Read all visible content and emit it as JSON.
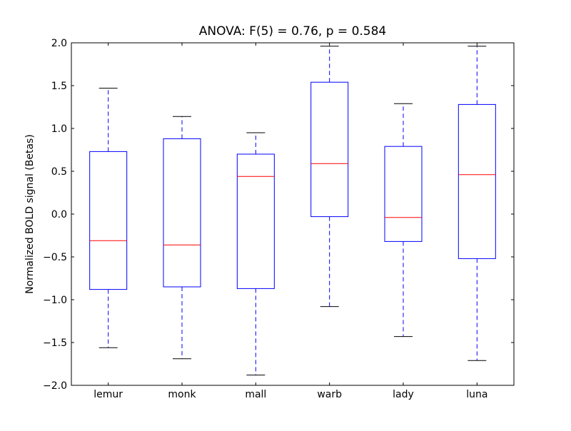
{
  "chart_data": {
    "type": "box",
    "title": "ANOVA: F(5) = 0.76, p = 0.584",
    "xlabel": "",
    "ylabel": "Normalized BOLD signal (Betas)",
    "ylim": [
      -2.0,
      2.0
    ],
    "yticks": [
      "−2.0",
      "−1.5",
      "−1.0",
      "−0.5",
      "0.0",
      "0.5",
      "1.0",
      "1.5",
      "2.0"
    ],
    "ytick_values": [
      -2.0,
      -1.5,
      -1.0,
      -0.5,
      0.0,
      0.5,
      1.0,
      1.5,
      2.0
    ],
    "grid": false,
    "categories": [
      "lemur",
      "monk",
      "mall",
      "warb",
      "lady",
      "luna"
    ],
    "boxes": [
      {
        "whisker_low": -1.56,
        "q1": -0.88,
        "median": -0.31,
        "q3": 0.73,
        "whisker_high": 1.47
      },
      {
        "whisker_low": -1.69,
        "q1": -0.85,
        "median": -0.36,
        "q3": 0.88,
        "whisker_high": 1.14
      },
      {
        "whisker_low": -1.88,
        "q1": -0.87,
        "median": 0.44,
        "q3": 0.7,
        "whisker_high": 0.95
      },
      {
        "whisker_low": -1.08,
        "q1": -0.03,
        "median": 0.59,
        "q3": 1.54,
        "whisker_high": 1.96
      },
      {
        "whisker_low": -1.43,
        "q1": -0.32,
        "median": -0.04,
        "q3": 0.79,
        "whisker_high": 1.29
      },
      {
        "whisker_low": -1.71,
        "q1": -0.52,
        "median": 0.46,
        "q3": 1.28,
        "whisker_high": 1.96
      }
    ],
    "colors": {
      "box": "#0000ff",
      "median": "#ff0000",
      "cap": "#000000"
    }
  }
}
